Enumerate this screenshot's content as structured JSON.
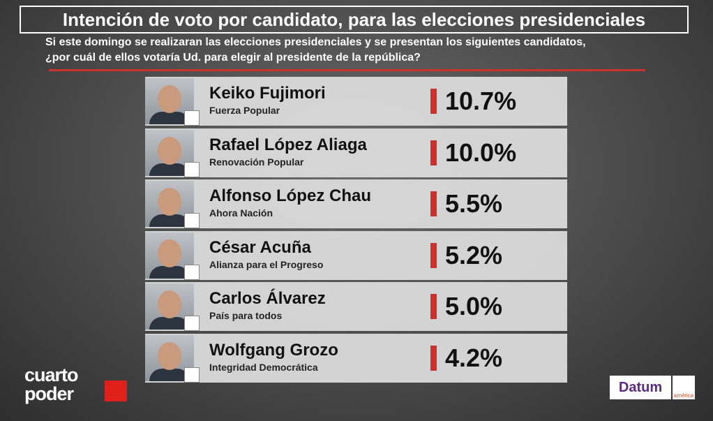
{
  "header": {
    "title": "Intención de voto por candidato, para las elecciones presidenciales",
    "question": [
      "Si este domingo se realizaran las elecciones presidenciales y se presentan los siguientes candidatos,",
      "¿por cuál de ellos votaría Ud. para elegir al presidente de la república?"
    ]
  },
  "rows": [
    {
      "name": "Keiko Fujimori",
      "party": "Fuerza Popular",
      "value": "10.7%"
    },
    {
      "name": "Rafael López Aliaga",
      "party": "Renovación Popular",
      "value": "10.0%"
    },
    {
      "name": "Alfonso López Chau",
      "party": "Ahora Nación",
      "value": "5.5%"
    },
    {
      "name": "César Acuña",
      "party": "Alianza para el Progreso",
      "value": "5.2%"
    },
    {
      "name": "Carlos Álvarez",
      "party": "País para todos",
      "value": "5.0%"
    },
    {
      "name": "Wolfgang Grozo",
      "party": "Integridad Democrática",
      "value": "4.2%"
    }
  ],
  "footer": {
    "brand": [
      "cuarto",
      "poder"
    ],
    "pollster": "Datum",
    "network": "américa"
  }
}
